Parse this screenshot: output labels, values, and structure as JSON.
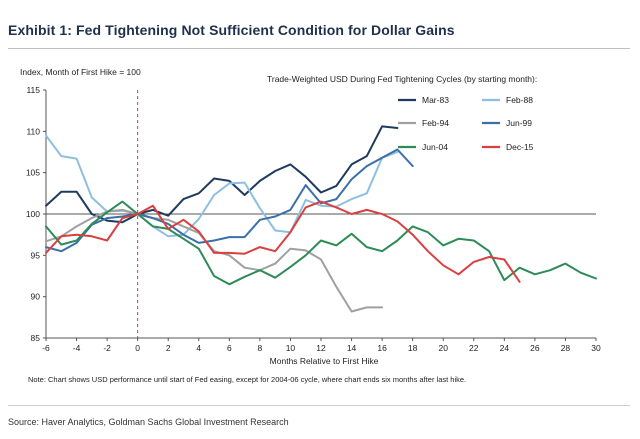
{
  "title": "Exhibit 1: Fed Tightening Not Sufficient Condition for Dollar Gains",
  "note": "Note: Chart shows USD performance until start of Fed easing, except for 2004-06 cycle, where chart ends six months after last hike.",
  "source": "Source: Haver Analytics, Goldman Sachs Global Investment Research",
  "chart_data": {
    "type": "line",
    "title": "Trade-Weighted USD During Fed Tightening Cycles (by starting month):",
    "xlabel": "Months Relative to First Hike",
    "ylabel": "Index, Month of First Hike  = 100",
    "xlim": [
      -6,
      30
    ],
    "ylim": [
      85,
      115
    ],
    "xticks": [
      -6,
      -4,
      -2,
      0,
      2,
      4,
      6,
      8,
      10,
      12,
      14,
      16,
      18,
      20,
      22,
      24,
      26,
      28,
      30
    ],
    "yticks": [
      85,
      90,
      95,
      100,
      105,
      110,
      115
    ],
    "reference_line": 100,
    "vertical_marker": 0,
    "legend_placement": "top-right",
    "series": [
      {
        "name": "Mar-83",
        "color": "#1e3a5f",
        "x": [
          -6,
          -5,
          -4,
          -3,
          -2,
          -1,
          0,
          1,
          2,
          3,
          4,
          5,
          6,
          7,
          8,
          9,
          10,
          11,
          12,
          13,
          14,
          15,
          16,
          17
        ],
        "y": [
          101,
          102.7,
          102.7,
          100,
          99.2,
          99,
          100,
          100.5,
          99.8,
          101.8,
          102.5,
          104.3,
          104,
          102.3,
          104,
          105.2,
          106,
          104.5,
          102.6,
          103.4,
          106,
          107,
          110.6,
          110.4
        ]
      },
      {
        "name": "Feb-88",
        "color": "#8fbfe0",
        "x": [
          -6,
          -5,
          -4,
          -3,
          -2,
          -1,
          0,
          1,
          2,
          3,
          4,
          5,
          6,
          7,
          8,
          9,
          10,
          11,
          12,
          13,
          14,
          15,
          16,
          17
        ],
        "y": [
          109.5,
          107,
          106.7,
          102,
          100.3,
          100.4,
          100,
          98.5,
          97.3,
          97.5,
          99.4,
          102.3,
          103.7,
          103.8,
          100.7,
          98,
          97.8,
          101.7,
          101,
          100.9,
          101.8,
          102.5,
          106.8,
          107.5
        ]
      },
      {
        "name": "Feb-94",
        "color": "#a0a0a0",
        "x": [
          -6,
          -5,
          -4,
          -3,
          -2,
          -1,
          0,
          1,
          2,
          3,
          4,
          5,
          6,
          7,
          8,
          9,
          10,
          11,
          12,
          13,
          14,
          15,
          16,
          17
        ],
        "y": [
          96.7,
          97.3,
          98.5,
          99.5,
          100.3,
          100.5,
          100,
          99.5,
          99.3,
          98.5,
          97.7,
          95.5,
          95,
          93.5,
          93.2,
          94,
          95.8,
          95.6,
          94.5,
          91.2,
          88.2,
          88.7,
          88.7,
          null
        ]
      },
      {
        "name": "Jun-99",
        "color": "#3b6fa8",
        "x": [
          -6,
          -5,
          -4,
          -3,
          -2,
          -1,
          0,
          1,
          2,
          3,
          4,
          5,
          6,
          7,
          8,
          9,
          10,
          11,
          12,
          13,
          14,
          15,
          16,
          17,
          18
        ],
        "y": [
          96,
          95.5,
          96.5,
          98.7,
          99.5,
          99.7,
          100,
          99.5,
          98.8,
          97.5,
          96.5,
          96.8,
          97.2,
          97.2,
          99.3,
          99.7,
          100.5,
          103.5,
          101.3,
          101.8,
          104.2,
          105.8,
          106.8,
          107.8,
          105.8
        ]
      },
      {
        "name": "Jun-04",
        "color": "#2e8b57",
        "x": [
          -6,
          -5,
          -4,
          -3,
          -2,
          -1,
          0,
          1,
          2,
          3,
          4,
          5,
          6,
          7,
          8,
          9,
          10,
          11,
          12,
          13,
          14,
          15,
          16,
          17,
          18,
          19,
          20,
          21,
          22,
          23,
          24,
          25,
          26,
          27,
          28,
          29,
          30
        ],
        "y": [
          98.5,
          96.3,
          96.8,
          98.8,
          100.2,
          101.5,
          100,
          98.5,
          98.2,
          97,
          95.8,
          92.5,
          91.5,
          92.4,
          93.2,
          92.3,
          93.6,
          95,
          96.8,
          96.2,
          97.6,
          96,
          95.5,
          96.8,
          98.5,
          97.8,
          96.2,
          97,
          96.8,
          95.5,
          92,
          93.5,
          92.7,
          93.2,
          94,
          92.9,
          92.2
        ]
      },
      {
        "name": "Dec-15",
        "color": "#d94040",
        "x": [
          -6,
          -5,
          -4,
          -3,
          -2,
          -1,
          0,
          1,
          2,
          3,
          4,
          5,
          6,
          7,
          8,
          9,
          10,
          11,
          12,
          13,
          14,
          15,
          16,
          17,
          18,
          19,
          20,
          21,
          22,
          23,
          24,
          25
        ],
        "y": [
          95.3,
          97.3,
          97.5,
          97.3,
          96.8,
          99.5,
          100,
          101,
          98.2,
          99.3,
          97.9,
          95.3,
          95.3,
          95.2,
          96,
          95.5,
          97.8,
          100.8,
          101.5,
          100.8,
          100,
          100.5,
          100,
          99.1,
          97.5,
          95.5,
          93.8,
          92.7,
          94.2,
          94.8,
          94.5,
          91.8
        ]
      }
    ]
  }
}
